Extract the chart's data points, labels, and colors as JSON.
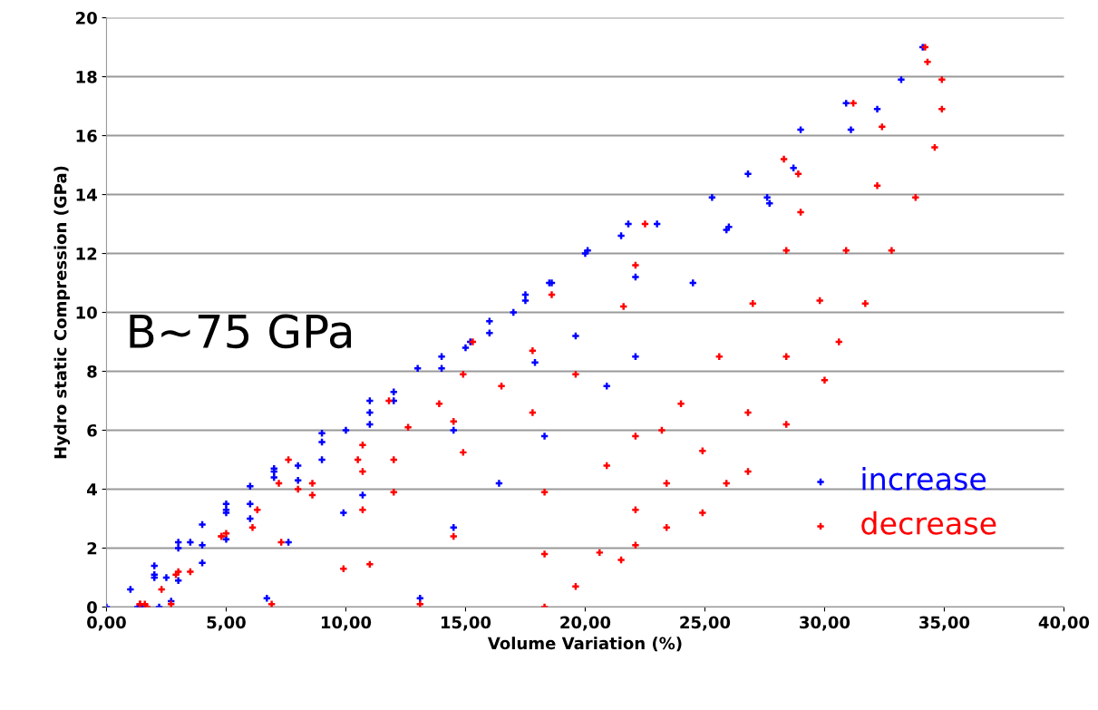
{
  "chart_data": {
    "type": "scatter",
    "xlabel": "Volume Variation (%)",
    "ylabel": "Hydro static Compression (GPa)",
    "annotations": [
      "B~75 GPa"
    ],
    "xlim": [
      0,
      40
    ],
    "ylim": [
      0,
      20
    ],
    "xticks": [
      {
        "value": 0,
        "label": "0,00"
      },
      {
        "value": 5,
        "label": "5,00"
      },
      {
        "value": 10,
        "label": "10,00"
      },
      {
        "value": 15,
        "label": "15,00"
      },
      {
        "value": 20,
        "label": "20,00"
      },
      {
        "value": 25,
        "label": "25,00"
      },
      {
        "value": 30,
        "label": "30,00"
      },
      {
        "value": 35,
        "label": "35,00"
      },
      {
        "value": 40,
        "label": "40,00"
      }
    ],
    "yticks": [
      0,
      2,
      4,
      6,
      8,
      10,
      12,
      14,
      16,
      18,
      20
    ],
    "grid": "y",
    "legend": "bottom right",
    "marker": "cross",
    "series": [
      {
        "name": "increase",
        "color": "#0000ff",
        "x": [
          0,
          1,
          2,
          3,
          4,
          5,
          6,
          7,
          1.4,
          2,
          3.5,
          5,
          7,
          9,
          11,
          1.3,
          2,
          3,
          5,
          7,
          9,
          11,
          13,
          15.2,
          1.5,
          2.5,
          4,
          6,
          8,
          10,
          12,
          14,
          16,
          17.5,
          18.5,
          2.2,
          3,
          5,
          8,
          11,
          14,
          16,
          17.5,
          18.6,
          20,
          21.5,
          2.7,
          4,
          6,
          9,
          12,
          15,
          17,
          20.1,
          21.8,
          23,
          25.3,
          26.8,
          29,
          30.9,
          6.7,
          7.6,
          9.9,
          10.7,
          14.5,
          17.9,
          19.6,
          22.1,
          25.9,
          27.7,
          13.1,
          14.5,
          16.4,
          18.3,
          20.9,
          22.1,
          24.5,
          26,
          27.6,
          28.7,
          31.1,
          32.2,
          33.2,
          34.1
        ],
        "values": [
          0,
          0.6,
          1.4,
          2.2,
          2.8,
          3.5,
          4.1,
          4.7,
          0,
          1.1,
          2.2,
          3.2,
          4.4,
          5.6,
          6.6,
          0,
          1,
          2,
          3.3,
          4.6,
          5.9,
          7,
          8.1,
          9,
          0,
          1,
          2.1,
          3.5,
          4.8,
          6,
          7.3,
          8.5,
          9.7,
          10.6,
          11,
          0,
          0.9,
          2.3,
          4.3,
          6.2,
          8.1,
          9.3,
          10.4,
          11,
          12,
          12.6,
          0.2,
          1.5,
          3,
          5,
          7,
          8.8,
          10,
          12.1,
          13,
          13,
          13.9,
          14.7,
          16.2,
          17.1,
          0.3,
          2.2,
          3.2,
          3.8,
          6,
          8.3,
          9.2,
          11.2,
          12.8,
          13.7,
          0.3,
          2.7,
          4.2,
          5.8,
          7.5,
          8.5,
          11,
          12.9,
          13.9,
          14.9,
          16.2,
          16.9,
          17.9,
          19
        ]
      },
      {
        "name": "decrease",
        "color": "#ff0000",
        "x": [
          7.6,
          7.2,
          6.3,
          4.8,
          2.9,
          1.4,
          11.8,
          10.5,
          8.6,
          6.1,
          3.5,
          1.6,
          15.3,
          14.9,
          13.9,
          12.6,
          10.7,
          8,
          5,
          3,
          1.7,
          18.6,
          17.8,
          16.5,
          14.5,
          12,
          10.7,
          8.6,
          4.8,
          2.3,
          1.4,
          22.5,
          22.1,
          21.6,
          19.6,
          17.8,
          14.9,
          12,
          10.7,
          7.3,
          2.7,
          28.3,
          28.9,
          29,
          28.4,
          27,
          25.6,
          24,
          23.2,
          22.1,
          20.9,
          18.3,
          14.5,
          11,
          9.9,
          6.9,
          31.2,
          32.4,
          32.2,
          30.9,
          29.8,
          28.4,
          26.8,
          24.9,
          23.4,
          22.1,
          20.6,
          18.3,
          13.1,
          34.2,
          34.3,
          34.9,
          34.9,
          34.6,
          33.8,
          32.8,
          31.7,
          30.6,
          30,
          28.4,
          26.8,
          25.9,
          24.9,
          23.4,
          22.1,
          21.5,
          19.6,
          18.3
        ],
        "values": [
          5,
          4.2,
          3.3,
          2.4,
          1.1,
          0.1,
          7,
          5,
          3.8,
          2.7,
          1.2,
          0.1,
          9,
          7.9,
          6.9,
          6.1,
          5.5,
          4,
          2.5,
          1.2,
          0,
          10.6,
          8.7,
          7.5,
          6.3,
          5,
          4.6,
          4.2,
          2.4,
          0.6,
          0.1,
          13,
          11.6,
          10.2,
          7.9,
          6.6,
          5.25,
          3.9,
          3.3,
          2.2,
          0.1,
          15.2,
          14.7,
          13.4,
          12.1,
          10.3,
          8.5,
          6.9,
          6,
          5.8,
          4.8,
          3.9,
          2.4,
          1.45,
          1.3,
          0.1,
          17.1,
          16.3,
          14.3,
          12.1,
          10.4,
          8.5,
          6.6,
          5.3,
          4.2,
          3.3,
          1.85,
          1.8,
          0.1,
          19,
          18.5,
          17.9,
          16.9,
          15.6,
          13.9,
          12.1,
          10.3,
          9,
          7.7,
          6.2,
          4.6,
          4.2,
          3.2,
          2.7,
          2.1,
          1.6,
          0.7,
          0
        ]
      }
    ]
  }
}
